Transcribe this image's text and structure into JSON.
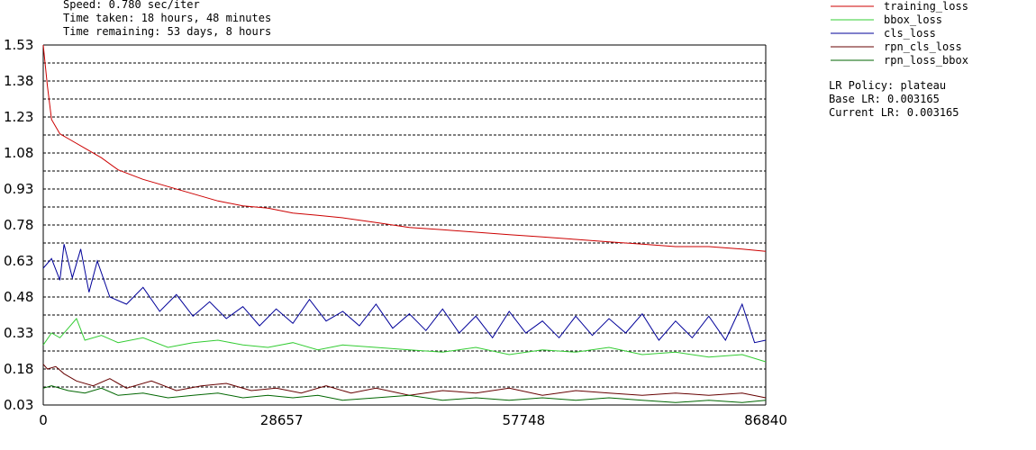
{
  "header": {
    "speed": "Speed: 0.780 sec/iter",
    "time_taken": "Time taken: 18 hours, 48 minutes",
    "time_remaining": "Time remaining: 53 days, 8 hours"
  },
  "lr_info": {
    "policy": "LR Policy: plateau",
    "base": "Base LR: 0.003165",
    "current": "Current LR: 0.003165"
  },
  "chart_data": {
    "type": "line",
    "xlim": [
      0,
      86840
    ],
    "ylim": [
      0.03,
      1.53
    ],
    "x_ticks": [
      0,
      28657,
      57748,
      86840
    ],
    "x_tick_labels": [
      "0",
      "28657",
      "57748",
      "86840"
    ],
    "y_ticks": [
      0.03,
      0.18,
      0.33,
      0.48,
      0.63,
      0.78,
      0.93,
      1.08,
      1.23,
      1.38,
      1.53
    ],
    "y_tick_labels": [
      "0.03",
      "0.18",
      "0.33",
      "0.48",
      "0.63",
      "0.78",
      "0.93",
      "1.08",
      "1.23",
      "1.38",
      "1.53"
    ],
    "grid": "horizontal dashed, every 0.075",
    "legend_position": "top-right",
    "series": [
      {
        "name": "training_loss",
        "color": "#cc0000",
        "x": [
          0,
          500,
          1000,
          2000,
          3000,
          5000,
          7000,
          9000,
          12000,
          15000,
          18000,
          21000,
          24000,
          27000,
          30000,
          33000,
          36000,
          40000,
          44000,
          48000,
          52000,
          56000,
          60000,
          64000,
          68000,
          72000,
          76000,
          80000,
          84000,
          86840
        ],
        "y": [
          1.53,
          1.36,
          1.22,
          1.16,
          1.14,
          1.1,
          1.06,
          1.01,
          0.97,
          0.94,
          0.91,
          0.88,
          0.86,
          0.85,
          0.83,
          0.82,
          0.81,
          0.79,
          0.77,
          0.76,
          0.75,
          0.74,
          0.73,
          0.72,
          0.71,
          0.7,
          0.69,
          0.69,
          0.68,
          0.67
        ]
      },
      {
        "name": "bbox_loss",
        "color": "#33cc33",
        "x": [
          0,
          1000,
          2000,
          3000,
          4000,
          5000,
          7000,
          9000,
          12000,
          15000,
          18000,
          21000,
          24000,
          27000,
          30000,
          33000,
          36000,
          40000,
          44000,
          48000,
          52000,
          56000,
          60000,
          64000,
          68000,
          72000,
          76000,
          80000,
          84000,
          86840
        ],
        "y": [
          0.28,
          0.33,
          0.31,
          0.35,
          0.39,
          0.3,
          0.32,
          0.29,
          0.31,
          0.27,
          0.29,
          0.3,
          0.28,
          0.27,
          0.29,
          0.26,
          0.28,
          0.27,
          0.26,
          0.25,
          0.27,
          0.24,
          0.26,
          0.25,
          0.27,
          0.24,
          0.25,
          0.23,
          0.24,
          0.21
        ]
      },
      {
        "name": "cls_loss",
        "color": "#000099",
        "x": [
          0,
          1000,
          2000,
          2500,
          3500,
          4500,
          5500,
          6500,
          8000,
          10000,
          12000,
          14000,
          16000,
          18000,
          20000,
          22000,
          24000,
          26000,
          28000,
          30000,
          32000,
          34000,
          36000,
          38000,
          40000,
          42000,
          44000,
          46000,
          48000,
          50000,
          52000,
          54000,
          56000,
          58000,
          60000,
          62000,
          64000,
          66000,
          68000,
          70000,
          72000,
          74000,
          76000,
          78000,
          80000,
          82000,
          84000,
          85500,
          86840
        ],
        "y": [
          0.6,
          0.64,
          0.55,
          0.7,
          0.56,
          0.68,
          0.5,
          0.63,
          0.48,
          0.45,
          0.52,
          0.42,
          0.49,
          0.4,
          0.46,
          0.39,
          0.44,
          0.36,
          0.43,
          0.37,
          0.47,
          0.38,
          0.42,
          0.36,
          0.45,
          0.35,
          0.41,
          0.34,
          0.43,
          0.33,
          0.4,
          0.31,
          0.42,
          0.33,
          0.38,
          0.31,
          0.4,
          0.32,
          0.39,
          0.33,
          0.41,
          0.3,
          0.38,
          0.31,
          0.4,
          0.3,
          0.45,
          0.29,
          0.3
        ]
      },
      {
        "name": "rpn_cls_loss",
        "color": "#660000",
        "x": [
          0,
          500,
          1500,
          2500,
          4000,
          6000,
          8000,
          10000,
          13000,
          16000,
          19000,
          22000,
          25000,
          28000,
          31000,
          34000,
          37000,
          40000,
          44000,
          48000,
          52000,
          56000,
          60000,
          64000,
          68000,
          72000,
          76000,
          80000,
          84000,
          86840
        ],
        "y": [
          0.2,
          0.18,
          0.19,
          0.16,
          0.13,
          0.11,
          0.14,
          0.1,
          0.13,
          0.09,
          0.11,
          0.12,
          0.09,
          0.1,
          0.08,
          0.11,
          0.08,
          0.1,
          0.07,
          0.09,
          0.08,
          0.1,
          0.07,
          0.09,
          0.08,
          0.07,
          0.08,
          0.07,
          0.08,
          0.06
        ]
      },
      {
        "name": "rpn_loss_bbox",
        "color": "#006600",
        "x": [
          0,
          1000,
          3000,
          5000,
          7000,
          9000,
          12000,
          15000,
          18000,
          21000,
          24000,
          27000,
          30000,
          33000,
          36000,
          40000,
          44000,
          48000,
          52000,
          56000,
          60000,
          64000,
          68000,
          72000,
          76000,
          80000,
          84000,
          86840
        ],
        "y": [
          0.1,
          0.11,
          0.09,
          0.08,
          0.1,
          0.07,
          0.08,
          0.06,
          0.07,
          0.08,
          0.06,
          0.07,
          0.06,
          0.07,
          0.05,
          0.06,
          0.07,
          0.05,
          0.06,
          0.05,
          0.06,
          0.05,
          0.06,
          0.05,
          0.04,
          0.05,
          0.04,
          0.05
        ]
      }
    ]
  }
}
